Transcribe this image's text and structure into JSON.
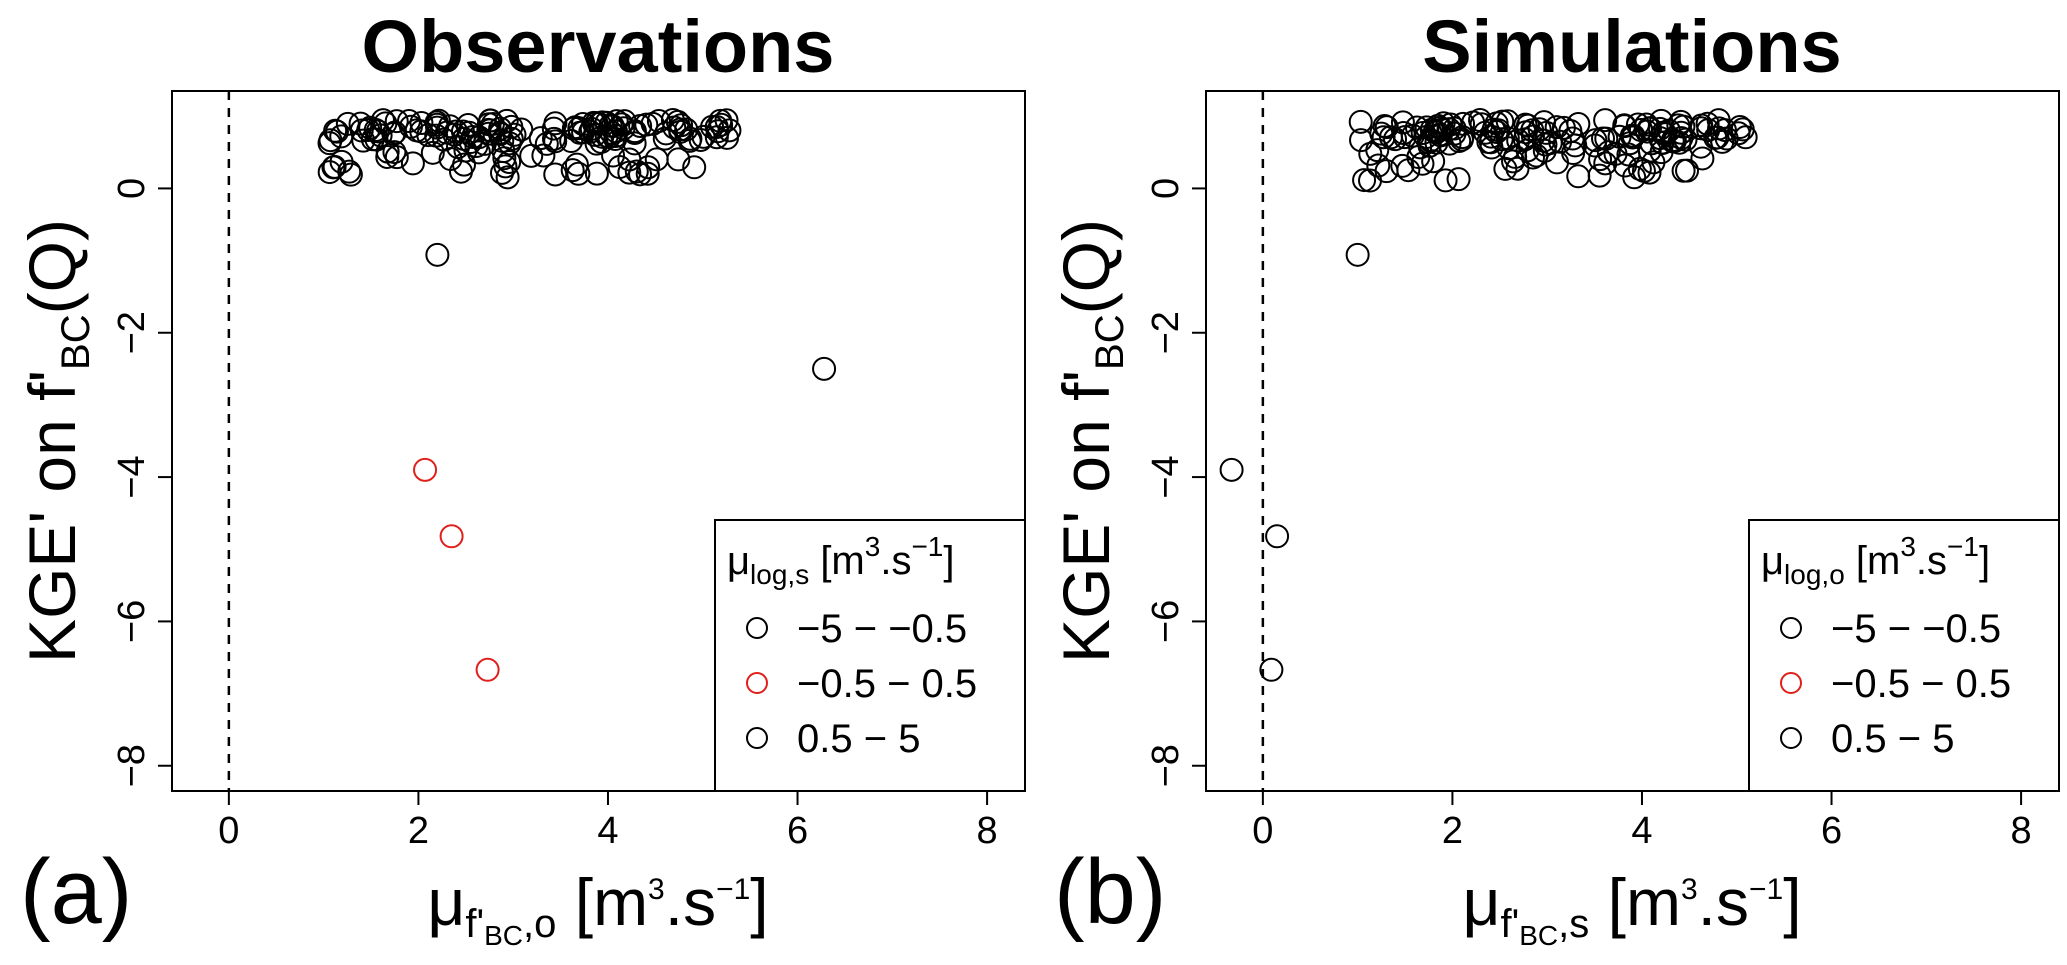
{
  "chart_data": [
    {
      "type": "scatter",
      "panel_label": "(a)",
      "title": "Observations",
      "xlabel": {
        "base": "μ",
        "sub_a": "f'",
        "sub_b": "BC",
        "sub_c": ",o",
        "unit_pre": " [m",
        "unit_sup1": "3",
        "unit_mid": ".s",
        "unit_sup2": "−1",
        "unit_post": "]"
      },
      "ylabel": {
        "pre": "KGE' on f'",
        "sub": "BC",
        "post": "(Q)"
      },
      "xlim": [
        -0.6,
        8.4
      ],
      "ylim": [
        -8.35,
        1.35
      ],
      "xticks": [
        0,
        2,
        4,
        6,
        8
      ],
      "yticks": [
        0,
        -2,
        -4,
        -6,
        -8
      ],
      "tick_labels_x": [
        "0",
        "2",
        "4",
        "6",
        "8"
      ],
      "tick_labels_y": [
        "0",
        "−2",
        "−4",
        "−6",
        "−8"
      ],
      "reference_line_x": 0,
      "legend": {
        "placement": "bottom-right",
        "title": {
          "base": "μ",
          "sub": "log,s",
          "unit_pre": " [m",
          "unit_sup1": "3",
          "unit_mid": ".s",
          "unit_sup2": "−1",
          "unit_post": "]"
        },
        "entries": [
          {
            "label": "−5 − −0.5",
            "color": "#000000"
          },
          {
            "label": "−0.5 − 0.5",
            "color": "#e0201b"
          },
          {
            "label": "0.5 − 5",
            "color": "#000000"
          }
        ]
      },
      "cluster": {
        "x_range": [
          1.05,
          5.3
        ],
        "y_range": [
          0.15,
          0.95
        ],
        "count": 170,
        "color": "#000000"
      },
      "outliers": [
        {
          "x": 2.2,
          "y": -0.92,
          "color": "#000000"
        },
        {
          "x": 6.28,
          "y": -2.5,
          "color": "#000000"
        },
        {
          "x": 2.07,
          "y": -3.9,
          "color": "#e0201b"
        },
        {
          "x": 2.35,
          "y": -4.82,
          "color": "#e0201b"
        },
        {
          "x": 2.73,
          "y": -6.67,
          "color": "#e0201b"
        }
      ]
    },
    {
      "type": "scatter",
      "panel_label": "(b)",
      "title": "Simulations",
      "xlabel": {
        "base": "μ",
        "sub_a": "f'",
        "sub_b": "BC",
        "sub_c": ",s",
        "unit_pre": " [m",
        "unit_sup1": "3",
        "unit_mid": ".s",
        "unit_sup2": "−1",
        "unit_post": "]"
      },
      "ylabel": {
        "pre": "KGE' on f'",
        "sub": "BC",
        "post": "(Q)"
      },
      "xlim": [
        -0.6,
        8.4
      ],
      "ylim": [
        -8.35,
        1.35
      ],
      "xticks": [
        0,
        2,
        4,
        6,
        8
      ],
      "yticks": [
        0,
        -2,
        -4,
        -6,
        -8
      ],
      "tick_labels_x": [
        "0",
        "2",
        "4",
        "6",
        "8"
      ],
      "tick_labels_y": [
        "0",
        "−2",
        "−4",
        "−6",
        "−8"
      ],
      "reference_line_x": 0,
      "legend": {
        "placement": "bottom-right",
        "title": {
          "base": "μ",
          "sub": "log,o",
          "unit_pre": " [m",
          "unit_sup1": "3",
          "unit_mid": ".s",
          "unit_sup2": "−1",
          "unit_post": "]"
        },
        "entries": [
          {
            "label": "−5 − −0.5",
            "color": "#000000"
          },
          {
            "label": "−0.5 − 0.5",
            "color": "#e0201b"
          },
          {
            "label": "0.5 − 5",
            "color": "#000000"
          }
        ]
      },
      "cluster": {
        "x_range": [
          1.0,
          5.1
        ],
        "y_range": [
          0.1,
          0.95
        ],
        "count": 170,
        "color": "#000000"
      },
      "outliers": [
        {
          "x": 1.0,
          "y": -0.92,
          "color": "#000000"
        },
        {
          "x": -0.33,
          "y": -3.9,
          "color": "#000000"
        },
        {
          "x": 0.15,
          "y": -4.82,
          "color": "#000000"
        },
        {
          "x": 0.09,
          "y": -6.67,
          "color": "#000000"
        }
      ]
    }
  ]
}
